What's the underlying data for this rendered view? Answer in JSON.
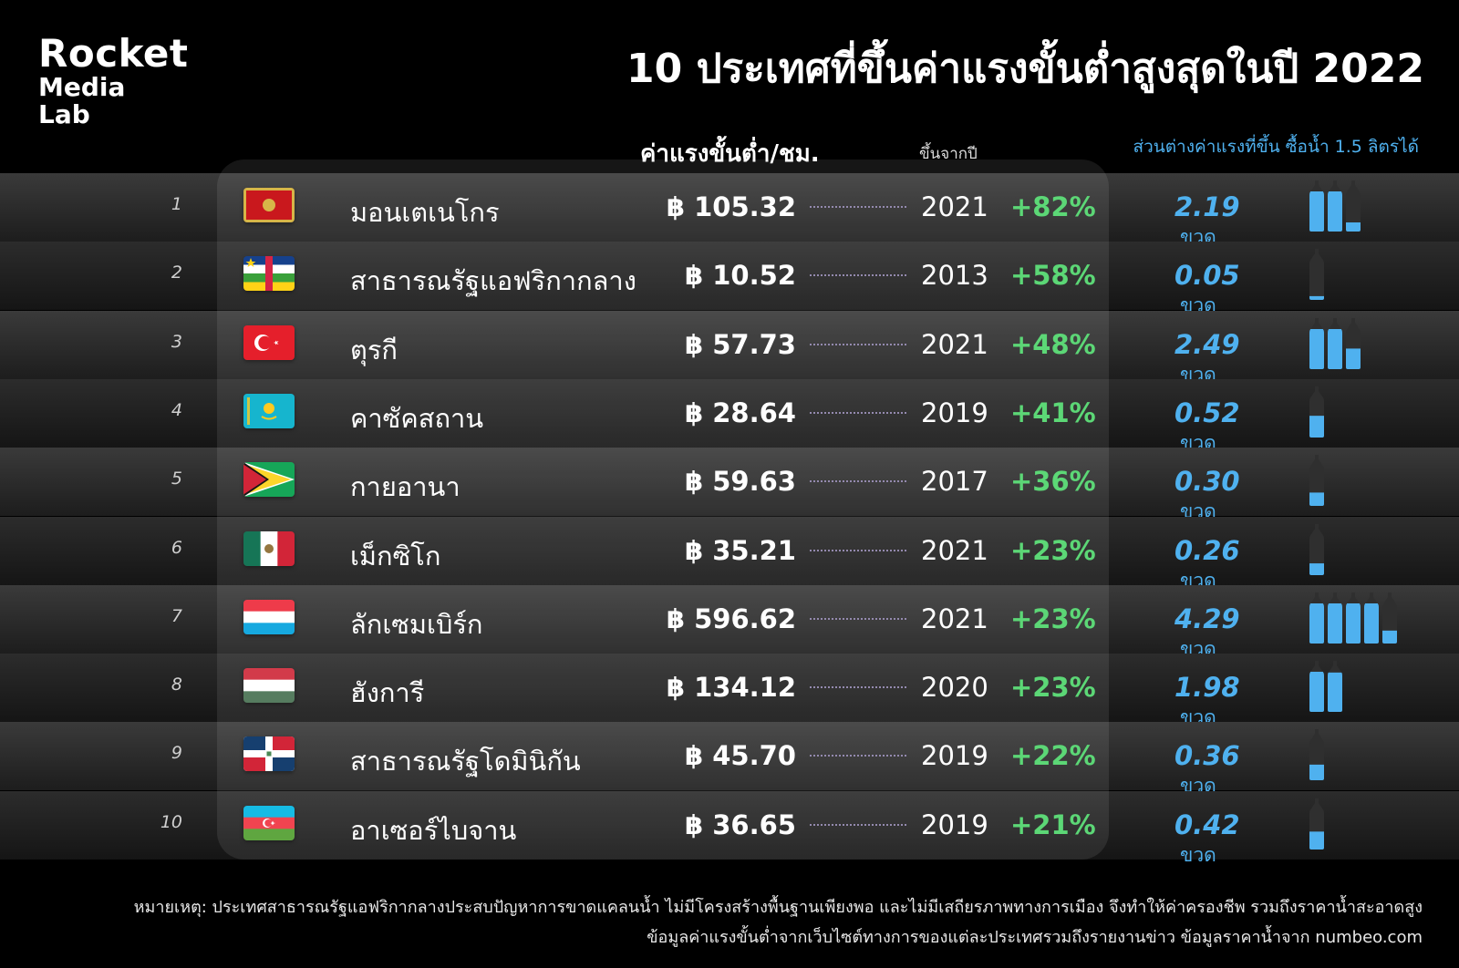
{
  "brand": {
    "line1": "Rocket",
    "line2": "Media",
    "line3": "Lab"
  },
  "title": "10 ประเทศที่ขึ้นค่าแรงขั้นต่ำสูงสุดในปี 2022",
  "headers": {
    "wage": "ค่าแรงขั้นต่ำ/ชม.",
    "year": "ขึ้นจากปี",
    "water": "ส่วนต่างค่าแรงที่ขึ้น ซื้อน้ำ 1.5 ลิตรได้"
  },
  "colors": {
    "accent_green": "#4dd46a",
    "accent_blue": "#4fb1ef",
    "background": "#000000"
  },
  "chart_data": {
    "type": "table",
    "title": "10 ประเทศที่ขึ้นค่าแรงขั้นต่ำสูงสุดในปี 2022",
    "columns": [
      "ค่าแรงขั้นต่ำ/ชม.",
      "ขึ้นจากปี",
      "ส่วนต่างค่าแรงที่ขึ้น ซื้อน้ำ 1.5 ลิตรได้"
    ],
    "currency_symbol": "฿",
    "unit_bottle": "ขวด",
    "rows": [
      {
        "rank": "1",
        "flag": "montenegro-flag",
        "country": "มอนเตเนโกร",
        "wage": "฿ 105.32",
        "year": "2021",
        "pct": "+82%",
        "bottles": "2.19",
        "bottles_value": 2.19
      },
      {
        "rank": "2",
        "flag": "central-african-republic-flag",
        "country": "สาธารณรัฐแอฟริกากลาง",
        "wage": "฿ 10.52",
        "year": "2013",
        "pct": "+58%",
        "bottles": "0.05",
        "bottles_value": 0.05
      },
      {
        "rank": "3",
        "flag": "turkey-flag",
        "country": "ตุรกี",
        "wage": "฿ 57.73",
        "year": "2021",
        "pct": "+48%",
        "bottles": "2.49",
        "bottles_value": 2.49
      },
      {
        "rank": "4",
        "flag": "kazakhstan-flag",
        "country": "คาซัคสถาน",
        "wage": "฿ 28.64",
        "year": "2019",
        "pct": "+41%",
        "bottles": "0.52",
        "bottles_value": 0.52
      },
      {
        "rank": "5",
        "flag": "guyana-flag",
        "country": "กายอานา",
        "wage": "฿ 59.63",
        "year": "2017",
        "pct": "+36%",
        "bottles": "0.30",
        "bottles_value": 0.3
      },
      {
        "rank": "6",
        "flag": "mexico-flag",
        "country": "เม็กซิโก",
        "wage": "฿ 35.21",
        "year": "2021",
        "pct": "+23%",
        "bottles": "0.26",
        "bottles_value": 0.26
      },
      {
        "rank": "7",
        "flag": "luxembourg-flag",
        "country": "ลักเซมเบิร์ก",
        "wage": "฿ 596.62",
        "year": "2021",
        "pct": "+23%",
        "bottles": "4.29",
        "bottles_value": 4.29
      },
      {
        "rank": "8",
        "flag": "hungary-flag",
        "country": "ฮังการี",
        "wage": "฿ 134.12",
        "year": "2020",
        "pct": "+23%",
        "bottles": "1.98",
        "bottles_value": 1.98
      },
      {
        "rank": "9",
        "flag": "dominican-republic-flag",
        "country": "สาธารณรัฐโดมินิกัน",
        "wage": "฿ 45.70",
        "year": "2019",
        "pct": "+22%",
        "bottles": "0.36",
        "bottles_value": 0.36
      },
      {
        "rank": "10",
        "flag": "azerbaijan-flag",
        "country": "อาเซอร์ไบจาน",
        "wage": "฿ 36.65",
        "year": "2019",
        "pct": "+21%",
        "bottles": "0.42",
        "bottles_value": 0.42
      }
    ]
  },
  "footnote": {
    "line1": "หมายเหตุ: ประเทศสาธารณรัฐแอฟริกากลางประสบปัญหาการขาดแคลนน้ำ ไม่มีโครงสร้างพื้นฐานเพียงพอ  และไม่มีเสถียรภาพทางการเมือง จึงทำให้ค่าครองชีพ รวมถึงราคาน้ำสะอาดสูง",
    "line2": "ข้อมูลค่าแรงขั้นต่ำจากเว็บไซต์ทางการของแต่ละประเทศรวมถึงรายงานข่าว  ข้อมูลราคาน้ำจาก numbeo.com"
  }
}
